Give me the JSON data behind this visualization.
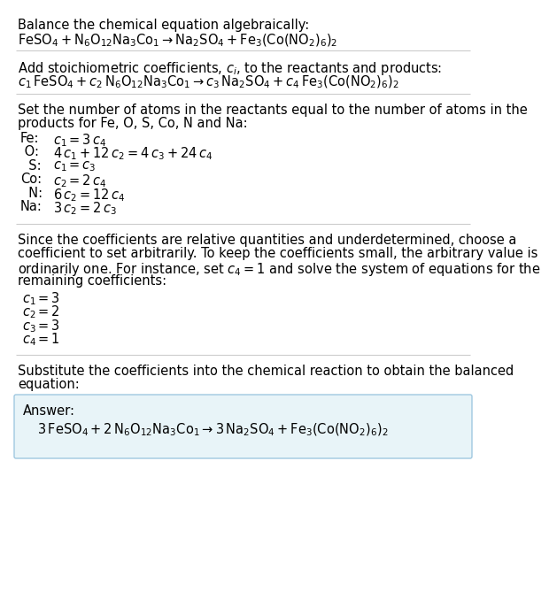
{
  "bg_color": "#ffffff",
  "text_color": "#000000",
  "box_color": "#e8f4f8",
  "box_edge_color": "#a0c8e0",
  "line_color": "#cccccc",
  "title_text": "Balance the chemical equation algebraically:",
  "eq1": "$\\mathregular{FeSO_4 + N_6O_{12}Na_3Co_1 \\rightarrow  Na_2SO_4 + Fe_3(Co(NO_2)_6)_2}$",
  "section2_title": "Add stoichiometric coefficients, $c_i$, to the reactants and products:",
  "eq2": "$c_1\\, \\mathregular{FeSO_4} + c_2\\, \\mathregular{N_6O_{12}Na_3Co_1} \\rightarrow  c_3\\, \\mathregular{Na_2SO_4} + c_4\\, \\mathregular{Fe_3(Co(NO_2)_6)_2}$",
  "section3_title_line1": "Set the number of atoms in the reactants equal to the number of atoms in the",
  "section3_title_line2": "products for Fe, O, S, Co, N and Na:",
  "atom_labels": [
    "Fe:",
    " O:",
    "  S:",
    "Co:",
    "  N:",
    "Na:"
  ],
  "atom_eqs": [
    "$c_1 = 3\\,c_4$",
    "$4\\,c_1 + 12\\,c_2 = 4\\,c_3 + 24\\,c_4$",
    "$c_1 = c_3$",
    "$c_2 = 2\\,c_4$",
    "$6\\,c_2 = 12\\,c_4$",
    "$3\\,c_2 = 2\\,c_3$"
  ],
  "section4_line1": "Since the coefficients are relative quantities and underdetermined, choose a",
  "section4_line2": "coefficient to set arbitrarily. To keep the coefficients small, the arbitrary value is",
  "section4_line3": "ordinarily one. For instance, set $c_4 = 1$ and solve the system of equations for the",
  "section4_line4": "remaining coefficients:",
  "coeff_values": [
    "$c_1 = 3$",
    "$c_2 = 2$",
    "$c_3 = 3$",
    "$c_4 = 1$"
  ],
  "section5_line1": "Substitute the coefficients into the chemical reaction to obtain the balanced",
  "section5_line2": "equation:",
  "answer_label": "Answer:",
  "answer_eq": "$3\\, \\mathregular{FeSO_4} + 2\\, \\mathregular{N_6O_{12}Na_3Co_1} \\rightarrow  3\\, \\mathregular{Na_2SO_4} + \\mathregular{Fe_3(Co(NO_2)_6)_2}$",
  "font_size": 10.5
}
